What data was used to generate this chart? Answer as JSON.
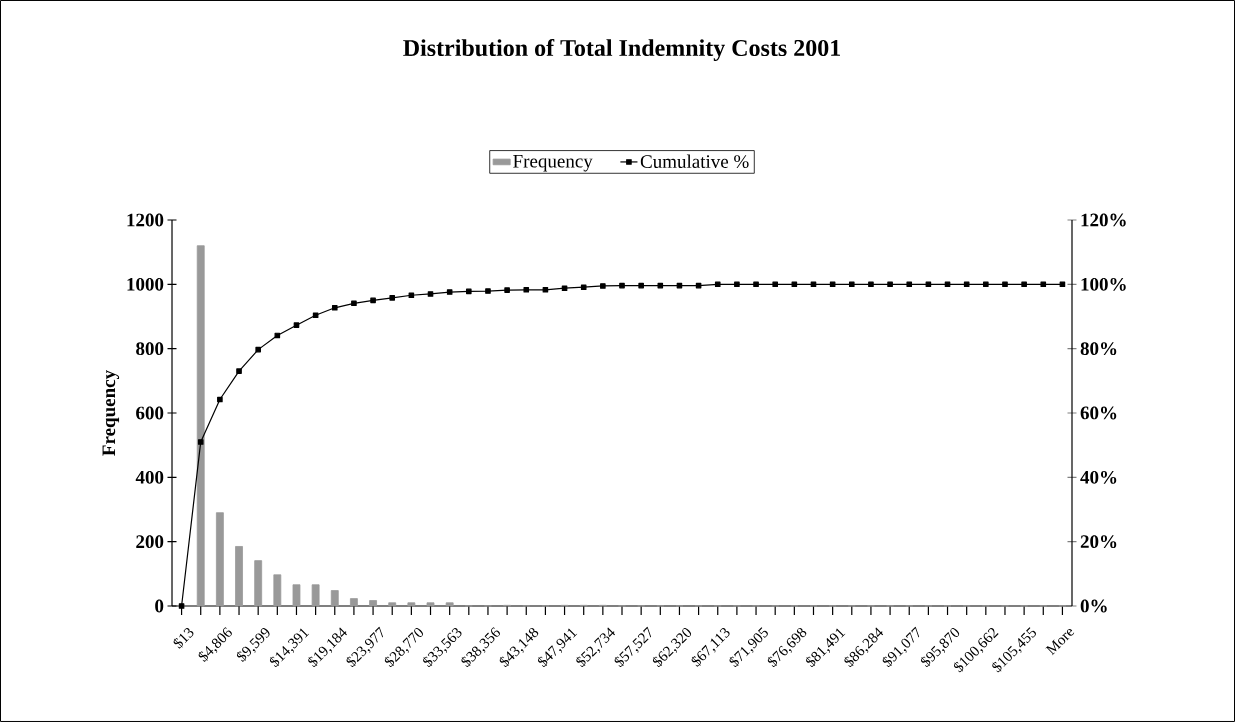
{
  "chart_data": {
    "type": "bar",
    "title": "Distribution of Total Indemnity Costs 2001",
    "ylabel": "Frequency",
    "categories": [
      "$13",
      null,
      "$4,806",
      null,
      "$9,599",
      null,
      "$14,391",
      null,
      "$19,184",
      null,
      "$23,977",
      null,
      "$28,770",
      null,
      "$33,563",
      null,
      "$38,356",
      null,
      "$43,148",
      null,
      "$47,941",
      null,
      "$52,734",
      null,
      "$57,527",
      null,
      "$62,320",
      null,
      "$67,113",
      null,
      "$71,905",
      null,
      "$76,698",
      null,
      "$81,491",
      null,
      "$86,284",
      null,
      "$91,077",
      null,
      "$95,870",
      null,
      "$100,662",
      null,
      "$105,455",
      null,
      "More"
    ],
    "series": [
      {
        "name": "Frequency",
        "color": "#999999",
        "values": [
          0,
          1120,
          290,
          185,
          141,
          97,
          66,
          66,
          48,
          23,
          17,
          10,
          10,
          10,
          10,
          0,
          0,
          2,
          0,
          0,
          2,
          2,
          2,
          0,
          0,
          0,
          0,
          0,
          0,
          0,
          0,
          0,
          0,
          0,
          0,
          0,
          0,
          0,
          0,
          0,
          0,
          0,
          0,
          0,
          0,
          0,
          0
        ]
      },
      {
        "name": "Cumulative %",
        "type": "line",
        "axis": "y2",
        "color": "#000000",
        "values": [
          0,
          51,
          64.2,
          73,
          79.7,
          84.1,
          87.3,
          90.4,
          92.7,
          94.1,
          95,
          95.8,
          96.6,
          97,
          97.6,
          97.8,
          97.9,
          98.2,
          98.3,
          98.3,
          98.8,
          99.1,
          99.5,
          99.6,
          99.6,
          99.6,
          99.6,
          99.6,
          100,
          100,
          100,
          100,
          100,
          100,
          100,
          100,
          100,
          100,
          100,
          100,
          100,
          100,
          100,
          100,
          100,
          100,
          100
        ]
      }
    ],
    "ylim": [
      0,
      1200
    ],
    "yticks": [
      0,
      200,
      400,
      600,
      800,
      1000,
      1200
    ],
    "y2lim": [
      0,
      120
    ],
    "y2ticks": [
      {
        "value": 0,
        "label": "0%"
      },
      {
        "value": 20,
        "label": "20%"
      },
      {
        "value": 40,
        "label": "40%"
      },
      {
        "value": 60,
        "label": "60%"
      },
      {
        "value": 80,
        "label": "80%"
      },
      {
        "value": 100,
        "label": "100%"
      },
      {
        "value": 120,
        "label": "120%"
      }
    ],
    "legend": "top",
    "marker": "square",
    "line_style": "solid"
  }
}
